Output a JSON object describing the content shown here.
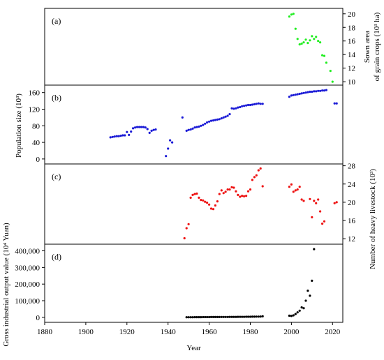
{
  "chart_data": {
    "type": "scatter",
    "xlabel": "Year",
    "xlim": [
      1880,
      2025
    ],
    "xticks": [
      1880,
      1900,
      1920,
      1940,
      1960,
      1980,
      2000,
      2020
    ],
    "shared_x_axis": true,
    "panels": [
      {
        "label": "(a)",
        "ylabel_lines": [
          "Sown area",
          "of grain crops (10³ ha)"
        ],
        "ylabel_side": "right",
        "ylim": [
          9.5,
          20.8
        ],
        "yticks": [
          10,
          12,
          14,
          16,
          18,
          20
        ],
        "ytick_labels": [
          "10",
          "12",
          "14",
          "16",
          "18",
          "20"
        ],
        "color": "#22ee22",
        "x": [
          1999,
          2000,
          2001,
          2002,
          2003,
          2004,
          2005,
          2006,
          2007,
          2008,
          2009,
          2010,
          2011,
          2012,
          2013,
          2014,
          2015,
          2016,
          2017,
          2019,
          2020
        ],
        "y": [
          19.6,
          19.9,
          20.0,
          17.8,
          16.3,
          15.5,
          15.6,
          15.8,
          16.2,
          15.7,
          16.1,
          16.7,
          16.3,
          16.6,
          16.0,
          15.8,
          13.9,
          13.8,
          12.8,
          11.6,
          10.0
        ]
      },
      {
        "label": "(b)",
        "ylabel_lines": [
          "Population size (10³)"
        ],
        "ylabel_side": "left",
        "ylim": [
          -12,
          178
        ],
        "yticks": [
          0,
          40,
          80,
          120,
          160
        ],
        "ytick_labels": [
          "0",
          "40",
          "80",
          "120",
          "160"
        ],
        "color": "#1a1ad6",
        "x": [
          1912,
          1913,
          1914,
          1915,
          1916,
          1917,
          1918,
          1919,
          1920,
          1921,
          1922,
          1923,
          1924,
          1925,
          1926,
          1927,
          1928,
          1929,
          1930,
          1931,
          1932,
          1933,
          1934,
          1939,
          1940,
          1941,
          1942,
          1947,
          1949,
          1950,
          1951,
          1952,
          1953,
          1954,
          1955,
          1956,
          1957,
          1958,
          1959,
          1960,
          1961,
          1962,
          1963,
          1964,
          1965,
          1966,
          1967,
          1968,
          1969,
          1970,
          1971,
          1972,
          1973,
          1974,
          1975,
          1976,
          1977,
          1978,
          1979,
          1980,
          1981,
          1982,
          1983,
          1984,
          1985,
          1986,
          1999,
          2000,
          2001,
          2002,
          2003,
          2004,
          2005,
          2006,
          2007,
          2008,
          2009,
          2010,
          2011,
          2012,
          2013,
          2014,
          2015,
          2016,
          2017,
          2021,
          2022
        ],
        "y": [
          52,
          53,
          54,
          55,
          55,
          56,
          57,
          57,
          65,
          58,
          66,
          74,
          76,
          77,
          77,
          77,
          77,
          76,
          72,
          63,
          68,
          70,
          71,
          7,
          25,
          45,
          40,
          100,
          68,
          70,
          71,
          73,
          76,
          77,
          78,
          80,
          82,
          85,
          88,
          90,
          92,
          93,
          94,
          95,
          96,
          98,
          100,
          102,
          104,
          108,
          122,
          121,
          122,
          124,
          125,
          127,
          128,
          129,
          130,
          130,
          131,
          132,
          133,
          134,
          133,
          133,
          150,
          153,
          154,
          155,
          156,
          157,
          158,
          159,
          160,
          161,
          162,
          162,
          163,
          163,
          164,
          164,
          165,
          165,
          166,
          134,
          134
        ]
      },
      {
        "label": "(c)",
        "ylabel_lines": [
          "Number of heavy livestock (10³)"
        ],
        "ylabel_side": "right",
        "ylim": [
          10.8,
          28.4
        ],
        "yticks": [
          12,
          16,
          20,
          24,
          28
        ],
        "ytick_labels": [
          "12",
          "16",
          "20",
          "24",
          "28"
        ],
        "color": "#ee1111",
        "x": [
          1948,
          1949,
          1950,
          1951,
          1952,
          1953,
          1954,
          1955,
          1956,
          1957,
          1958,
          1959,
          1960,
          1961,
          1962,
          1963,
          1964,
          1965,
          1966,
          1967,
          1968,
          1969,
          1970,
          1971,
          1972,
          1973,
          1974,
          1975,
          1976,
          1977,
          1978,
          1979,
          1980,
          1981,
          1982,
          1983,
          1984,
          1985,
          1986,
          1999,
          2000,
          2001,
          2002,
          2003,
          2004,
          2005,
          2006,
          2009,
          2010,
          2011,
          2012,
          2013,
          2014,
          2015,
          2016,
          2021,
          2022
        ],
        "y": [
          12.1,
          14.3,
          15.2,
          21.0,
          21.6,
          21.8,
          21.9,
          21.0,
          20.5,
          20.4,
          20.1,
          19.9,
          19.5,
          18.6,
          18.5,
          19.3,
          20.2,
          21.8,
          22.6,
          22.0,
          22.3,
          22.8,
          22.8,
          23.3,
          23.2,
          22.4,
          21.6,
          21.2,
          21.4,
          21.3,
          21.4,
          22.4,
          22.8,
          24.9,
          25.5,
          25.9,
          27.0,
          27.4,
          23.5,
          23.4,
          23.9,
          22.3,
          22.6,
          22.8,
          23.4,
          20.6,
          20.3,
          20.7,
          16.7,
          20.3,
          19.8,
          20.6,
          18.0,
          15.3,
          15.8,
          19.8,
          20.0
        ]
      },
      {
        "label": "(d)",
        "ylabel_lines": [
          "Gross industrial output value (10⁴ Yuan)"
        ],
        "ylabel_side": "left",
        "ylim": [
          -30000,
          440000
        ],
        "yticks": [
          0,
          100000,
          200000,
          300000,
          400000
        ],
        "ytick_labels": [
          "0",
          "100,000",
          "200,000",
          "300,000",
          "400,000"
        ],
        "color": "#000000",
        "x": [
          1949,
          1950,
          1951,
          1952,
          1953,
          1954,
          1955,
          1956,
          1957,
          1958,
          1959,
          1960,
          1961,
          1962,
          1963,
          1964,
          1965,
          1966,
          1967,
          1968,
          1969,
          1970,
          1971,
          1972,
          1973,
          1974,
          1975,
          1976,
          1977,
          1978,
          1979,
          1980,
          1981,
          1982,
          1983,
          1984,
          1985,
          1986,
          1999,
          2000,
          2001,
          2002,
          2003,
          2004,
          2005,
          2006,
          2007,
          2008,
          2009,
          2010,
          2011
        ],
        "y": [
          500,
          600,
          700,
          800,
          900,
          1000,
          1100,
          1200,
          1300,
          1400,
          1500,
          1600,
          1700,
          1800,
          1900,
          2000,
          2100,
          2200,
          2300,
          2400,
          2500,
          2600,
          2700,
          2800,
          2900,
          3000,
          3100,
          3200,
          3300,
          3400,
          3500,
          3700,
          3900,
          4100,
          4300,
          4600,
          5000,
          6000,
          10000,
          8000,
          12000,
          20000,
          30000,
          40000,
          60000,
          55000,
          100000,
          160000,
          130000,
          220000,
          410000
        ]
      }
    ]
  }
}
